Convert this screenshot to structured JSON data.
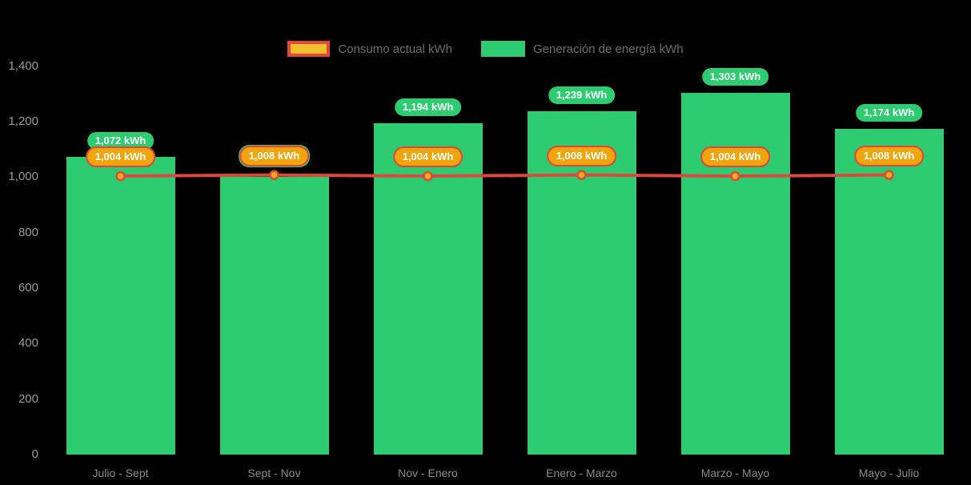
{
  "colors": {
    "background": "#000000",
    "generation_green": "#2ecc71",
    "consumption_red": "#e0463c",
    "consumption_orange_fill": "#f0a50d",
    "legend_swatch_yellow": "#f0c12b",
    "marker_orange": "#f2ad17",
    "label_text_white": "#ffffff",
    "legend_text": "#6f6f6f",
    "y_axis_text": "#9a9a9a",
    "x_axis_text": "#8b8b8b"
  },
  "legend": {
    "items": [
      {
        "label": "Consumo actual kWh",
        "series": "consumption",
        "marker": "red-bordered-yellow-rect"
      },
      {
        "label": "Generación de energía kWh",
        "series": "generation",
        "marker": "green-rect"
      }
    ]
  },
  "chart_data": {
    "type": "bar",
    "subtype": "bar-with-line-overlay",
    "title": "",
    "xlabel": "",
    "ylabel": "",
    "categories": [
      "Julio - Sept",
      "Sept - Nov",
      "Nov - Enero",
      "Enero - Marzo",
      "Marzo - Mayo",
      "Mayo - Julio"
    ],
    "series": [
      {
        "name": "Generación de energía kWh",
        "type": "bar",
        "color": "#2ecc71",
        "values": [
          1072,
          1000,
          1194,
          1239,
          1303,
          1174
        ],
        "labels": [
          "1,072 kWh",
          null,
          "1,194 kWh",
          "1,239 kWh",
          "1,303 kWh",
          "1,174 kWh"
        ]
      },
      {
        "name": "Consumo actual kWh",
        "type": "line",
        "color": "#e0463c",
        "marker_color": "#f2ad17",
        "values": [
          1004,
          1008,
          1004,
          1008,
          1004,
          1008
        ],
        "labels": [
          "1,004 kWh",
          "1,008 kWh",
          "1,004 kWh",
          "1,008 kWh",
          "1,004 kWh",
          "1,008 kWh"
        ]
      }
    ],
    "ylim": [
      0,
      1400
    ],
    "ytick_step": 200,
    "yticks": [
      "0",
      "200",
      "400",
      "600",
      "800",
      "1,000",
      "1,200",
      "1,400"
    ],
    "grid": false,
    "legend_position": "top-center"
  }
}
